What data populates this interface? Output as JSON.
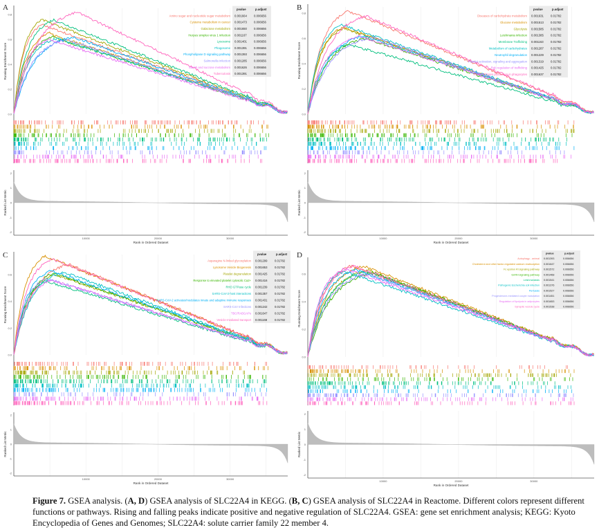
{
  "figure": {
    "caption_label": "Figure 7.",
    "caption_parts": [
      " GSEA analysis. (",
      "A, D",
      ") GSEA analysis of SLC22A4 in KEGG. (",
      "B, C",
      ") GSEA analysis of SLC22A4 in Reactome. Different colors represent different functions or pathways. Rising and falling peaks indicate positive and negative regulation of SLC22A4. GSEA: gene set enrichment analysis; KEGG: Kyoto Encyclopedia of Genes and Genomes; SLC22A4: solute carrier family 22 member 4."
    ]
  },
  "palette": [
    "#F8766D",
    "#D89000",
    "#A3A500",
    "#39B600",
    "#00BF7D",
    "#00BFC4",
    "#00B0F6",
    "#9590FF",
    "#E76BF3",
    "#FF62BC"
  ],
  "common": {
    "es_ylabel": "Running Enrichment Score",
    "rank_ylabel": "Ranked List Metric",
    "xlabel": "Rank in Ordered Dataset",
    "table_headers": [
      "pvalue",
      "p.adjust"
    ],
    "x_ticks": [
      "10000",
      "20000",
      "30000"
    ],
    "rank_y_ticks": [
      "2",
      "1",
      "0",
      "-1",
      "-2"
    ]
  },
  "chart_data": [
    {
      "type": "line",
      "panel": "A",
      "es_y_ticks": [
        "0.0",
        "0.2",
        "0.4",
        "0.6",
        "0.8"
      ],
      "xlim": [
        0,
        38000
      ],
      "ylim": [
        0,
        0.85
      ],
      "series": [
        {
          "name": "Amino sugar and nucleotide sugar metabolism",
          "pvalue": "0.001664",
          "padjust": "0.006656",
          "peak_es": 0.72
        },
        {
          "name": "Cysteine metabolism in cancer",
          "pvalue": "0.001473",
          "padjust": "0.006656",
          "peak_es": 0.65
        },
        {
          "name": "Galactose metabolism",
          "pvalue": "0.001650",
          "padjust": "0.006656",
          "peak_es": 0.76
        },
        {
          "name": "Herpes simplex virus 1 infection",
          "pvalue": "0.001167",
          "padjust": "0.006656",
          "peak_es": 0.62
        },
        {
          "name": "Lysosome",
          "pvalue": "0.001401",
          "padjust": "0.006656",
          "peak_es": 0.76
        },
        {
          "name": "Phagosome",
          "pvalue": "0.001391",
          "padjust": "0.006656",
          "peak_es": 0.61
        },
        {
          "name": "Phospholipase D signaling pathway",
          "pvalue": "0.001393",
          "padjust": "0.006656",
          "peak_es": 0.62
        },
        {
          "name": "Salmonella infection",
          "pvalue": "0.001285",
          "padjust": "0.006656",
          "peak_es": 0.6
        },
        {
          "name": "Starch and sucrose metabolism",
          "pvalue": "0.001626",
          "padjust": "0.006656",
          "peak_es": 0.6
        },
        {
          "name": "Tuberculosis",
          "pvalue": "0.001391",
          "padjust": "0.006656",
          "peak_es": 0.82
        }
      ]
    },
    {
      "type": "line",
      "panel": "B",
      "es_y_ticks": [
        "0.0",
        "0.2",
        "0.4",
        "0.6",
        "0.8"
      ],
      "xlim": [
        0,
        38000
      ],
      "ylim": [
        0,
        0.85
      ],
      "series": [
        {
          "name": "Diseases of carbohydrate metabolism",
          "pvalue": "0.001631",
          "padjust": "0.01782",
          "peak_es": 0.82
        },
        {
          "name": "Glucose metabolism",
          "pvalue": "0.001513",
          "padjust": "0.01782",
          "peak_es": 0.69
        },
        {
          "name": "Glycolysis",
          "pvalue": "0.001585",
          "padjust": "0.01782",
          "peak_es": 0.68
        },
        {
          "name": "Leishmania infection",
          "pvalue": "0.001385",
          "padjust": "0.01782",
          "peak_es": 0.6
        },
        {
          "name": "Membrane Trafficking",
          "pvalue": "0.001163",
          "padjust": "0.01782",
          "peak_es": 0.55
        },
        {
          "name": "Metabolism of carbohydrates",
          "pvalue": "0.001287",
          "padjust": "0.01782",
          "peak_es": 0.71
        },
        {
          "name": "Neutrophil degranulation",
          "pvalue": "0.001229",
          "padjust": "0.01782",
          "peak_es": 0.62
        },
        {
          "name": "Platelet activation, signaling and aggregation",
          "pvalue": "0.001319",
          "padjust": "0.01782",
          "peak_es": 0.61
        },
        {
          "name": "Rab regulation of trafficking",
          "pvalue": "0.001425",
          "padjust": "0.01782",
          "peak_es": 0.62
        },
        {
          "name": "RHO GTPases production in phagocytes",
          "pvalue": "0.001637",
          "padjust": "0.01782",
          "peak_es": 0.78
        }
      ]
    },
    {
      "type": "line",
      "panel": "C",
      "es_y_ticks": [
        "0.0",
        "0.2",
        "0.4",
        "0.6"
      ],
      "xlim": [
        0,
        38000
      ],
      "ylim": [
        0,
        0.75
      ],
      "series": [
        {
          "name": "Asparagine N-linked glycosylation",
          "pvalue": "0.001299",
          "padjust": "0.01782",
          "peak_es": 0.68
        },
        {
          "name": "Lysosome Vesicle Biogenesis",
          "pvalue": "0.001653",
          "padjust": "0.01782",
          "peak_es": 0.74
        },
        {
          "name": "Platelet degranulation",
          "pvalue": "0.001425",
          "padjust": "0.01782",
          "peak_es": 0.6
        },
        {
          "name": "Response to elevated platelet cytosolic Ca2+",
          "pvalue": "0.001416",
          "padjust": "0.01782",
          "peak_es": 0.61
        },
        {
          "name": "RHO GTPase cycle",
          "pvalue": "0.001239",
          "padjust": "0.01782",
          "peak_es": 0.55
        },
        {
          "name": "SARS-CoV-2-host interactions",
          "pvalue": "0.001357",
          "padjust": "0.01782",
          "peak_es": 0.62
        },
        {
          "name": "SARS-CoV-2 activates/modulates innate and adaptive immune responses",
          "pvalue": "0.001431",
          "padjust": "0.01782",
          "peak_es": 0.63
        },
        {
          "name": "SARS-CoV Infections",
          "pvalue": "0.001242",
          "padjust": "0.01782",
          "peak_es": 0.57
        },
        {
          "name": "TBC/RABGAPs",
          "pvalue": "0.001647",
          "padjust": "0.01782",
          "peak_es": 0.56
        },
        {
          "name": "Vesicle-mediated transport",
          "pvalue": "0.001168",
          "padjust": "0.01782",
          "peak_es": 0.72
        }
      ]
    },
    {
      "type": "line",
      "panel": "D",
      "es_y_ticks": [
        "0.0",
        "0.2",
        "0.4",
        "0.6"
      ],
      "xlim": [
        0,
        38000
      ],
      "ylim": [
        0,
        0.7
      ],
      "series": [
        {
          "name": "Autophagy - animal",
          "pvalue": "0.001393",
          "padjust": "0.006656",
          "peak_es": 0.66
        },
        {
          "name": "Cholesterol and other factor-regulated calcium reabsorption",
          "pvalue": "0.001647",
          "padjust": "0.006656",
          "peak_es": 0.66
        },
        {
          "name": "Fc epsilon RI signaling pathway",
          "pvalue": "0.001572",
          "padjust": "0.006656",
          "peak_es": 0.63
        },
        {
          "name": "GnRH signaling pathway",
          "pvalue": "0.001468",
          "padjust": "0.006656",
          "peak_es": 0.61
        },
        {
          "name": "Leishmaniasis",
          "pvalue": "0.001541",
          "padjust": "0.006656",
          "peak_es": 0.62
        },
        {
          "name": "Pathogenic Escherichia coli infection",
          "pvalue": "0.001376",
          "padjust": "0.006656",
          "peak_es": 0.62
        },
        {
          "name": "Pertussis",
          "pvalue": "0.001527",
          "padjust": "0.006656",
          "peak_es": 0.63
        },
        {
          "name": "Progesterone-mediated oocyte maturation",
          "pvalue": "0.001451",
          "padjust": "0.006656",
          "peak_es": 0.6
        },
        {
          "name": "Regulation of lipolysis in adipocytes",
          "pvalue": "0.001653",
          "padjust": "0.006656",
          "peak_es": 0.64
        },
        {
          "name": "Synaptic vesicle cycle",
          "pvalue": "0.001538",
          "padjust": "0.006656",
          "peak_es": 0.66
        }
      ]
    }
  ],
  "panel_letters": [
    "A",
    "B",
    "C",
    "D"
  ]
}
